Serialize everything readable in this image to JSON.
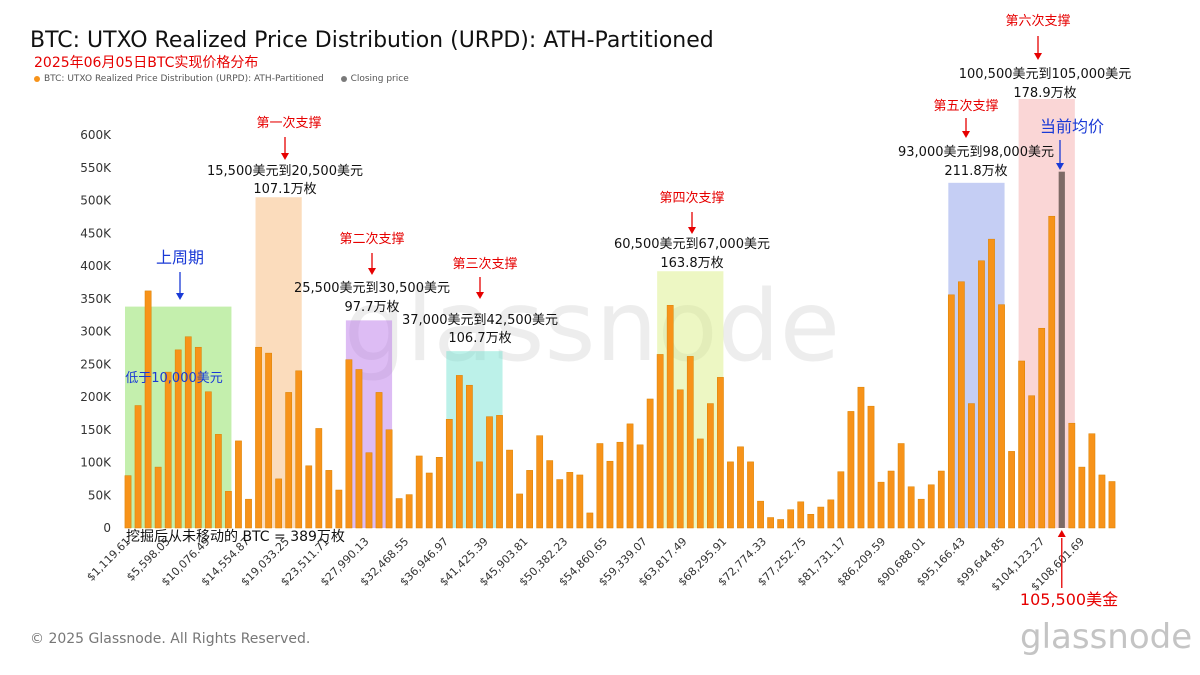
{
  "title": "BTC: UTXO Realized Price Distribution (URPD): ATH-Partitioned",
  "subtitle": "2025年06月05日BTC实现价格分布",
  "legend": [
    {
      "label": "BTC: UTXO Realized Price Distribution (URPD): ATH-Partitioned",
      "color": "#f7931a"
    },
    {
      "label": "Closing price",
      "color": "#7a7a7a"
    }
  ],
  "footer": "© 2025 Glassnode. All Rights Reserved.",
  "logo": "glassnode",
  "watermark": "glassnode",
  "colors": {
    "bar": "#f7931a",
    "bar_outline": "#d98200",
    "closing": "#7d6a66",
    "red": "#e60000",
    "blue": "#1a3ad6"
  },
  "annotations": {
    "last_cycle": "上周期",
    "below_10k": "低于10,000美元",
    "s1_label": "第一次支撑",
    "s1_range": "15,500美元到20,500美元",
    "s1_amount": "107.1万枚",
    "s2_label": "第二次支撑",
    "s2_range": "25,500美元到30,500美元",
    "s2_amount": "97.7万枚",
    "s3_label": "第三次支撑",
    "s3_range": "37,000美元到42,500美元",
    "s3_amount": "106.7万枚",
    "s4_label": "第四次支撑",
    "s4_range": "60,500美元到67,000美元",
    "s4_amount": "163.8万枚",
    "s5_label": "第五次支撑",
    "s5_range": "93,000美元到98,000美元",
    "s5_amount": "211.8万枚",
    "s6_label": "第六次支撑",
    "s6_range": "100,500美元到105,000美元",
    "s6_amount": "178.9万枚",
    "current_avg": "当前均价",
    "current_price": "105,500美金",
    "unmoved": "挖掘后从未移动的 BTC = 389万枚"
  },
  "chart_data": {
    "type": "bar",
    "ylim": [
      0,
      600000
    ],
    "y_ticks": [
      "0",
      "50K",
      "100K",
      "150K",
      "200K",
      "250K",
      "300K",
      "350K",
      "400K",
      "450K",
      "500K",
      "550K",
      "600K"
    ],
    "x_tick_labels": [
      "$1,119.61",
      "$5,598.05",
      "$10,076.49",
      "$14,554.87",
      "$19,033.25",
      "$23,511.71",
      "$27,990.13",
      "$32,468.55",
      "$36,946.97",
      "$41,425.39",
      "$45,903.81",
      "$50,382.23",
      "$54,860.65",
      "$59,339.07",
      "$63,817.49",
      "$68,295.91",
      "$72,774.33",
      "$77,252.75",
      "$81,731.17",
      "$86,209.59",
      "$90,688.01",
      "$95,166.43",
      "$99,644.85",
      "$104,123.27",
      "$108,601.69"
    ],
    "values": [
      80000,
      187000,
      362000,
      93000,
      238000,
      272000,
      292000,
      276000,
      208000,
      143000,
      56000,
      133000,
      44000,
      276000,
      267000,
      75000,
      207000,
      240000,
      95000,
      152000,
      88000,
      58000,
      257000,
      242000,
      115000,
      207000,
      150000,
      45000,
      51000,
      110000,
      84000,
      108000,
      166000,
      233000,
      218000,
      101000,
      170000,
      172000,
      119000,
      52000,
      88000,
      141000,
      103000,
      74000,
      85000,
      81000,
      23000,
      129000,
      102000,
      131000,
      159000,
      127000,
      197000,
      265000,
      340000,
      211000,
      262000,
      136000,
      190000,
      230000,
      101000,
      124000,
      101000,
      41000,
      16000,
      13000,
      28000,
      40000,
      21000,
      32000,
      43000,
      86000,
      178000,
      215000,
      186000,
      70000,
      87000,
      129000,
      63000,
      44000,
      66000,
      87000,
      356000,
      376000,
      190000,
      408000,
      441000,
      341000,
      117000,
      255000,
      202000,
      305000,
      476000,
      544000,
      160000,
      93000,
      144000,
      81000,
      71000
    ],
    "closing_price_index": 93,
    "closing_price": 105500
  }
}
